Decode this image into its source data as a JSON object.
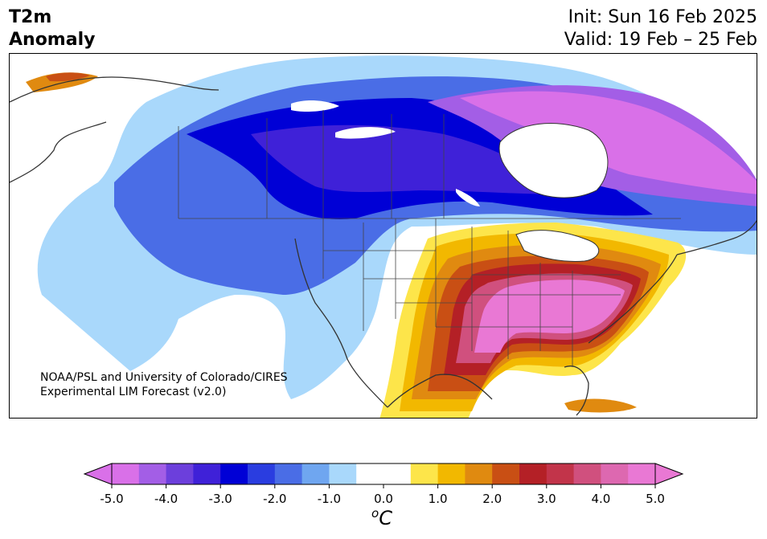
{
  "header": {
    "variable_line1": "T2m",
    "variable_line2": "Anomaly",
    "init_text": "Init: Sun 16 Feb 2025",
    "valid_text": "Valid: 19 Feb – 25 Feb"
  },
  "map": {
    "credit_line1": "NOAA/PSL and University of Colorado/CIRES",
    "credit_line2": "Experimental LIM Forecast (v2.0)"
  },
  "colorbar": {
    "unit_main": "C",
    "unit_sup": "o",
    "tick_labels": [
      "-5.0",
      "-4.0",
      "-3.0",
      "-2.0",
      "-1.0",
      "0.0",
      "1.0",
      "2.0",
      "3.0",
      "4.0",
      "5.0"
    ],
    "colors": [
      "#d970e8",
      "#a35ee6",
      "#6c3fdc",
      "#3f21d8",
      "#0000d6",
      "#2a3de0",
      "#4a6de6",
      "#6fa6f0",
      "#a9d8fb",
      "#ffffff",
      "#ffffff",
      "#fde54a",
      "#f2b800",
      "#e08a10",
      "#c94f14",
      "#b42026",
      "#c2344a",
      "#d0507e",
      "#dd68b0",
      "#e978d4"
    ]
  }
}
